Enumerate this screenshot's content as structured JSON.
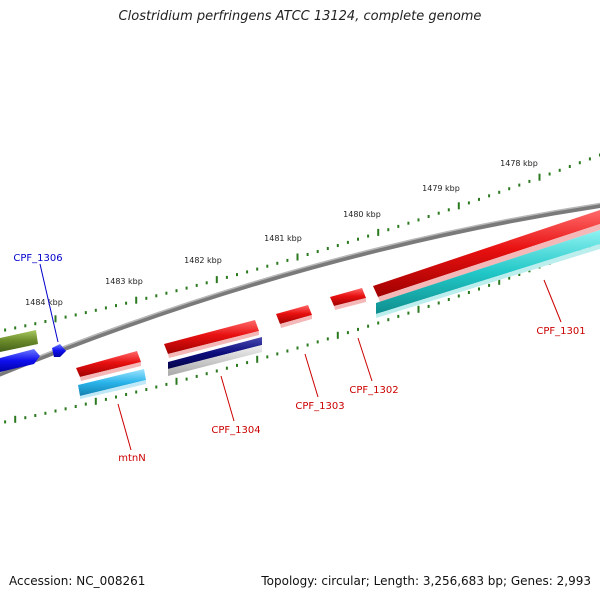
{
  "title": "Clostridium perfringens ATCC 13124, complete genome",
  "footer": {
    "accession": "Accession: NC_008261",
    "summary": "Topology: circular; Length: 3,256,683 bp; Genes: 2,993"
  },
  "colors": {
    "backbone": "#8a8a8a",
    "tick": "#2b7a1f",
    "forward_gene": "#e01010",
    "reverse_gene": "#22c8c8",
    "label_red": "#cc0000",
    "label_blue": "#0000cc"
  },
  "scale_labels": [
    "1478 kbp",
    "1479 kbp",
    "1480 kbp",
    "1481 kbp",
    "1482 kbp",
    "1483 kbp",
    "1484 kbp"
  ],
  "genes": [
    {
      "name": "CPF_1301"
    },
    {
      "name": "CPF_1302"
    },
    {
      "name": "CPF_1303"
    },
    {
      "name": "CPF_1304"
    },
    {
      "name": "mtnN"
    },
    {
      "name": "CPF_1306"
    }
  ]
}
